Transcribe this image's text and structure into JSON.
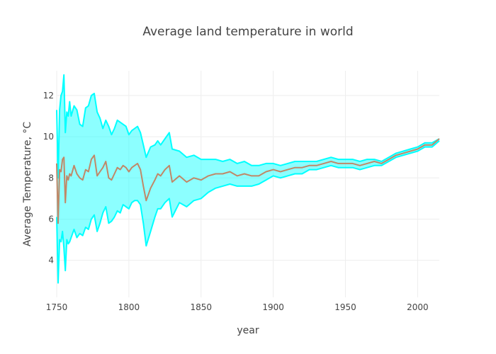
{
  "chart_data": {
    "type": "line",
    "title": "Average land temperature in world",
    "xlabel": "year",
    "ylabel": "Average Temperature, °C",
    "xlim": [
      1750,
      2015
    ],
    "ylim": [
      2.2,
      13.2
    ],
    "x_ticks": [
      "1750",
      "1800",
      "1850",
      "1900",
      "1950",
      "2000"
    ],
    "y_ticks": [
      "4",
      "6",
      "8",
      "10",
      "12"
    ],
    "grid": true,
    "legend": "none",
    "colors": {
      "mean": "#c08868",
      "band": "#00ffff",
      "band_fill": "rgba(0,255,255,0.45)"
    },
    "series": [
      {
        "role": "mean",
        "x": [
          1750,
          1751,
          1752,
          1753,
          1754,
          1755,
          1756,
          1757,
          1758,
          1759,
          1760,
          1762,
          1764,
          1766,
          1768,
          1770,
          1772,
          1774,
          1776,
          1778,
          1780,
          1782,
          1784,
          1786,
          1788,
          1790,
          1792,
          1794,
          1796,
          1798,
          1800,
          1802,
          1804,
          1806,
          1808,
          1810,
          1812,
          1815,
          1818,
          1820,
          1822,
          1825,
          1828,
          1830,
          1835,
          1840,
          1845,
          1850,
          1855,
          1860,
          1865,
          1870,
          1875,
          1880,
          1885,
          1890,
          1895,
          1900,
          1905,
          1910,
          1915,
          1920,
          1925,
          1930,
          1935,
          1940,
          1945,
          1950,
          1955,
          1960,
          1965,
          1970,
          1975,
          1980,
          1985,
          1990,
          1995,
          2000,
          2005,
          2010,
          2015
        ],
        "values": [
          8.7,
          5.8,
          8.4,
          8.3,
          8.9,
          9.0,
          6.8,
          8.1,
          7.9,
          8.2,
          8.1,
          8.6,
          8.2,
          8.0,
          7.9,
          8.4,
          8.3,
          8.9,
          9.1,
          8.1,
          8.3,
          8.5,
          8.8,
          8.0,
          7.9,
          8.2,
          8.5,
          8.4,
          8.6,
          8.5,
          8.3,
          8.5,
          8.6,
          8.7,
          8.4,
          7.6,
          6.9,
          7.5,
          7.9,
          8.2,
          8.1,
          8.4,
          8.6,
          7.8,
          8.1,
          7.8,
          8.0,
          7.9,
          8.1,
          8.2,
          8.2,
          8.3,
          8.1,
          8.2,
          8.1,
          8.1,
          8.3,
          8.4,
          8.3,
          8.4,
          8.5,
          8.5,
          8.6,
          8.6,
          8.7,
          8.8,
          8.7,
          8.7,
          8.7,
          8.6,
          8.7,
          8.8,
          8.7,
          8.9,
          9.1,
          9.2,
          9.3,
          9.4,
          9.6,
          9.6,
          9.9
        ]
      },
      {
        "role": "upper",
        "x": [
          1750,
          1751,
          1752,
          1753,
          1754,
          1755,
          1756,
          1757,
          1758,
          1759,
          1760,
          1762,
          1764,
          1766,
          1768,
          1770,
          1772,
          1774,
          1776,
          1778,
          1780,
          1782,
          1784,
          1786,
          1788,
          1790,
          1792,
          1794,
          1796,
          1798,
          1800,
          1802,
          1804,
          1806,
          1808,
          1810,
          1812,
          1815,
          1818,
          1820,
          1822,
          1825,
          1828,
          1830,
          1835,
          1840,
          1845,
          1850,
          1855,
          1860,
          1865,
          1870,
          1875,
          1880,
          1885,
          1890,
          1895,
          1900,
          1905,
          1910,
          1915,
          1920,
          1925,
          1930,
          1935,
          1940,
          1945,
          1950,
          1955,
          1960,
          1965,
          1970,
          1975,
          1980,
          1985,
          1990,
          1995,
          2000,
          2005,
          2010,
          2015
        ],
        "values": [
          11.3,
          8.0,
          11.3,
          12.0,
          12.2,
          13.0,
          10.2,
          11.2,
          11.0,
          11.7,
          11.0,
          11.5,
          11.3,
          10.6,
          10.5,
          11.4,
          11.5,
          12.0,
          12.1,
          11.2,
          10.9,
          10.4,
          10.8,
          10.5,
          10.1,
          10.4,
          10.8,
          10.7,
          10.6,
          10.5,
          10.1,
          10.3,
          10.4,
          10.5,
          10.2,
          9.6,
          9.0,
          9.5,
          9.6,
          9.8,
          9.6,
          9.9,
          10.2,
          9.4,
          9.3,
          9.0,
          9.1,
          8.9,
          8.9,
          8.9,
          8.8,
          8.9,
          8.7,
          8.8,
          8.6,
          8.6,
          8.7,
          8.7,
          8.6,
          8.7,
          8.8,
          8.8,
          8.8,
          8.8,
          8.9,
          9.0,
          8.9,
          8.9,
          8.9,
          8.8,
          8.9,
          8.9,
          8.8,
          9.0,
          9.2,
          9.3,
          9.4,
          9.5,
          9.7,
          9.7,
          9.9
        ]
      },
      {
        "role": "lower",
        "x": [
          1750,
          1751,
          1752,
          1753,
          1754,
          1755,
          1756,
          1757,
          1758,
          1759,
          1760,
          1762,
          1764,
          1766,
          1768,
          1770,
          1772,
          1774,
          1776,
          1778,
          1780,
          1782,
          1784,
          1786,
          1788,
          1790,
          1792,
          1794,
          1796,
          1798,
          1800,
          1802,
          1804,
          1806,
          1808,
          1810,
          1812,
          1815,
          1818,
          1820,
          1822,
          1825,
          1828,
          1830,
          1835,
          1840,
          1845,
          1850,
          1855,
          1860,
          1865,
          1870,
          1875,
          1880,
          1885,
          1890,
          1895,
          1900,
          1905,
          1910,
          1915,
          1920,
          1925,
          1930,
          1935,
          1940,
          1945,
          1950,
          1955,
          1960,
          1965,
          1970,
          1975,
          1980,
          1985,
          1990,
          1995,
          2000,
          2005,
          2010,
          2015
        ],
        "values": [
          6.1,
          2.9,
          5.0,
          4.9,
          5.4,
          4.6,
          3.5,
          5.0,
          4.8,
          4.9,
          5.1,
          5.5,
          5.1,
          5.3,
          5.2,
          5.6,
          5.5,
          6.0,
          6.2,
          5.4,
          5.8,
          6.3,
          6.6,
          5.8,
          5.9,
          6.1,
          6.4,
          6.3,
          6.7,
          6.6,
          6.5,
          6.8,
          6.9,
          6.9,
          6.7,
          5.8,
          4.7,
          5.4,
          6.1,
          6.5,
          6.5,
          6.8,
          7.0,
          6.1,
          6.8,
          6.6,
          6.9,
          7.0,
          7.3,
          7.5,
          7.6,
          7.7,
          7.6,
          7.6,
          7.6,
          7.7,
          7.9,
          8.1,
          8.0,
          8.1,
          8.2,
          8.2,
          8.4,
          8.4,
          8.5,
          8.6,
          8.5,
          8.5,
          8.5,
          8.4,
          8.5,
          8.6,
          8.6,
          8.8,
          9.0,
          9.1,
          9.2,
          9.3,
          9.5,
          9.5,
          9.8
        ]
      }
    ]
  }
}
